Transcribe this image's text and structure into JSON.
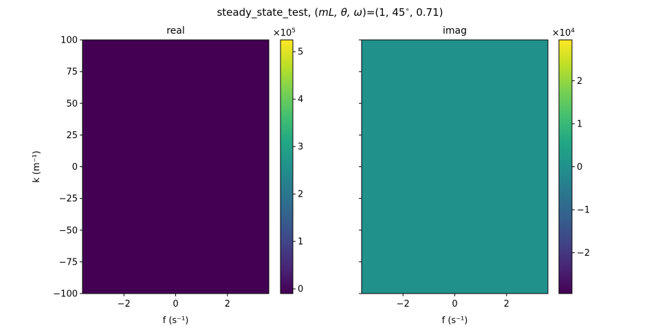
{
  "figure": {
    "title_prefix": "steady_state_test, (",
    "title_vars": "mL, θ, ω",
    "title_suffix": ")=(1, 45",
    "title_deg": "∘",
    "title_end": ", 0.71)"
  },
  "chart_data": [
    {
      "type": "heatmap",
      "title": "real",
      "xlabel": "f (s⁻¹)",
      "ylabel": "k (m⁻¹)",
      "xlim": [
        -3.6,
        3.6
      ],
      "ylim": [
        -100,
        100
      ],
      "xticks": [
        -2,
        0,
        2
      ],
      "yticks": [
        100,
        75,
        50,
        25,
        0,
        -25,
        -50,
        -75,
        -100
      ],
      "xtick_labels": [
        "−2",
        "0",
        "2"
      ],
      "ytick_labels": [
        "100",
        "75",
        "50",
        "25",
        "0",
        "−25",
        "−50",
        "−75",
        "−100"
      ],
      "fill_value": 0,
      "fill_color": "#440154",
      "colorbar": {
        "colormap": "viridis",
        "range": [
          -0.1,
          5.25
        ],
        "ticks": [
          0,
          1,
          2,
          3,
          4,
          5
        ],
        "tick_labels": [
          "0",
          "1",
          "2",
          "3",
          "4",
          "5"
        ],
        "multiplier": "×10",
        "exponent": "5"
      }
    },
    {
      "type": "heatmap",
      "title": "imag",
      "xlabel": "f (s⁻¹)",
      "ylabel": "",
      "xlim": [
        -3.6,
        3.6
      ],
      "ylim": [
        -100,
        100
      ],
      "xticks": [
        -2,
        0,
        2
      ],
      "yticks": [
        100,
        75,
        50,
        25,
        0,
        -25,
        -50,
        -75,
        -100
      ],
      "xtick_labels": [
        "−2",
        "0",
        "2"
      ],
      "ytick_labels": [],
      "fill_value": 0,
      "fill_color": "#21918c",
      "colorbar": {
        "colormap": "viridis",
        "range": [
          -2.95,
          2.95
        ],
        "ticks": [
          -2,
          -1,
          0,
          1,
          2
        ],
        "tick_labels": [
          "−2",
          "−1",
          "0",
          "1",
          "2"
        ],
        "multiplier": "×10",
        "exponent": "4"
      }
    }
  ]
}
